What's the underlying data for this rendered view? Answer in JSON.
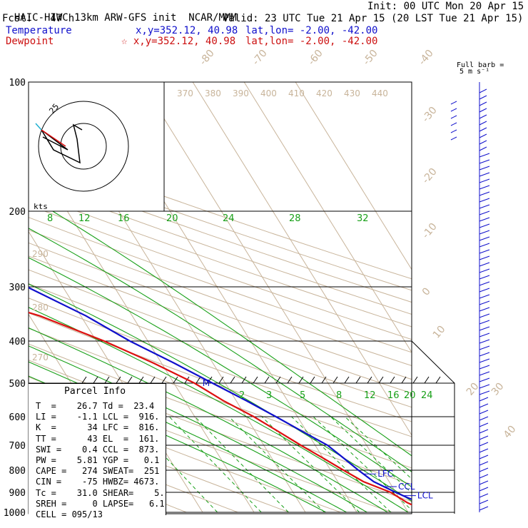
{
  "header": {
    "model": "HAIC-HIWC 13km ARW-GFS init",
    "org": "NCAR/MMM",
    "init": "Init: 00 UTC Mon 20 Apr 15",
    "fcst": "Fcst:   47 h",
    "valid": "Valid: 23 UTC Tue 21 Apr 15 (20 LST Tue 21 Apr 15)",
    "temp_label": "Temperature",
    "temp_xy": "x,y=352.12, 40.98",
    "temp_latlon": "lat,lon= -2.00, -42.00",
    "dew_label": "Dewpoint",
    "dew_xy": "☆ x,y=352.12, 40.98",
    "dew_latlon": "lat,lon= -2.00, -42.00",
    "barb_title_1": "Full barb =",
    "barb_title_2": "5 m s⁻¹"
  },
  "colors": {
    "temperature": "#1010cc",
    "dewpoint": "#dd1010",
    "isotherm": "#c8b49a",
    "dry_adiabat": "#c8b49a",
    "moist_adiabat": "#18a018",
    "mixing_ratio": "#18a018",
    "isobar": "#000000"
  },
  "chart_data": {
    "type": "line",
    "title": "Skew-T log-P sounding",
    "y_axis": "pressure (hPa)",
    "pressure_levels": [
      100,
      200,
      300,
      400,
      500,
      600,
      700,
      800,
      900,
      1000
    ],
    "isotherm_labels": [
      -80,
      -70,
      -60,
      -50,
      -40,
      -30,
      -20,
      -10,
      0,
      10,
      20,
      30,
      40
    ],
    "theta_labels": [
      370,
      380,
      390,
      400,
      410,
      420,
      430,
      440
    ],
    "theta_side_labels": [
      290,
      280,
      270
    ],
    "moist_labels": [
      8,
      12,
      16,
      20,
      24,
      28,
      32
    ],
    "mixing_labels": [
      2,
      3,
      5,
      8,
      12,
      16,
      20,
      24
    ],
    "series": [
      {
        "name": "Temperature",
        "points": [
          {
            "p": 1000,
            "t": 26.5
          },
          {
            "p": 975,
            "t": 25.0
          },
          {
            "p": 950,
            "t": 23.5
          },
          {
            "p": 925,
            "t": 21.6
          },
          {
            "p": 900,
            "t": 20.0
          },
          {
            "p": 850,
            "t": 17.0
          },
          {
            "p": 800,
            "t": 15.4
          },
          {
            "p": 750,
            "t": 14.0
          },
          {
            "p": 700,
            "t": 12.4
          },
          {
            "p": 650,
            "t": 9.2
          },
          {
            "p": 600,
            "t": 5.8
          },
          {
            "p": 550,
            "t": 2.0
          },
          {
            "p": 500,
            "t": -2.5
          },
          {
            "p": 450,
            "t": -7.5
          },
          {
            "p": 400,
            "t": -13.5
          },
          {
            "p": 350,
            "t": -19.0
          },
          {
            "p": 300,
            "t": -27.0
          },
          {
            "p": 250,
            "t": -36.5
          },
          {
            "p": 200,
            "t": -48.0
          },
          {
            "p": 175,
            "t": -55.0
          },
          {
            "p": 161,
            "t": -62.0
          },
          {
            "p": 150,
            "t": -68.0
          },
          {
            "p": 125,
            "t": -74.0
          },
          {
            "p": 110,
            "t": -78.0
          },
          {
            "p": 100,
            "t": -80.0
          }
        ]
      },
      {
        "name": "Dewpoint",
        "points": [
          {
            "p": 1000,
            "t": 23.4
          },
          {
            "p": 975,
            "t": 22.5
          },
          {
            "p": 950,
            "t": 21.0
          },
          {
            "p": 900,
            "t": 19.0
          },
          {
            "p": 850,
            "t": 15.0
          },
          {
            "p": 800,
            "t": 12.5
          },
          {
            "p": 750,
            "t": 10.0
          },
          {
            "p": 700,
            "t": 7.2
          },
          {
            "p": 650,
            "t": 4.5
          },
          {
            "p": 600,
            "t": 1.5
          },
          {
            "p": 550,
            "t": -2.5
          },
          {
            "p": 500,
            "t": -6.0
          },
          {
            "p": 450,
            "t": -11.5
          },
          {
            "p": 400,
            "t": -18.5
          },
          {
            "p": 350,
            "t": -28.0
          },
          {
            "p": 320,
            "t": -37.0
          },
          {
            "p": 300,
            "t": -40.0
          },
          {
            "p": 280,
            "t": -39.5
          },
          {
            "p": 250,
            "t": -46.0
          },
          {
            "p": 225,
            "t": -57.0
          },
          {
            "p": 200,
            "t": -59.5
          },
          {
            "p": 175,
            "t": -67.0
          },
          {
            "p": 150,
            "t": -80.0
          },
          {
            "p": 130,
            "t": -82.0
          },
          {
            "p": 115,
            "t": -82.0
          },
          {
            "p": 100,
            "t": -86.0
          }
        ]
      }
    ],
    "levels_marked": [
      {
        "label": "EL",
        "p": 161
      },
      {
        "label": "LFC",
        "p": 816
      },
      {
        "label": "CCL",
        "p": 873
      },
      {
        "label": "LCL",
        "p": 916
      },
      {
        "label": "M",
        "p": 500
      }
    ],
    "parcel_info": {
      "title": "Parcel Info",
      "rows": [
        "T  =    26.7 Td =  23.4",
        "LI =    -1.1 LCL =  916.",
        "K  =      34 LFC =  816.",
        "TT =      43 EL  =  161.",
        "SWI =    0.4 CCL =  873.",
        "PW =    5.81 YGP =   0.1",
        "CAPE =   274 SWEAT=  251",
        "CIN =    -75 HWBZ= 4673.",
        "Tc =    31.0 SHEAR=    5.",
        "SREH =     0 LAPSE=   6.1",
        "CELL = 095/13"
      ]
    },
    "hodograph": {
      "units_label": "kts",
      "ring_label": "25"
    }
  }
}
